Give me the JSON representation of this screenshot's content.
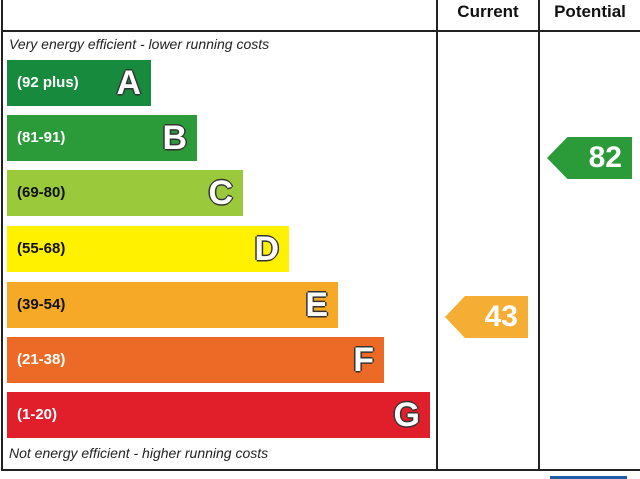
{
  "chart_data": {
    "type": "epc-rating",
    "headers": {
      "current": "Current",
      "potential": "Potential"
    },
    "top_note": "Very energy efficient - lower running costs",
    "bottom_note": "Not energy efficient - higher running costs",
    "bands": [
      {
        "letter": "A",
        "range": "(92 plus)",
        "color": "#178a3e"
      },
      {
        "letter": "B",
        "range": "(81-91)",
        "color": "#2b9b3a"
      },
      {
        "letter": "C",
        "range": "(69-80)",
        "color": "#9bc93c"
      },
      {
        "letter": "D",
        "range": "(55-68)",
        "color": "#fff100"
      },
      {
        "letter": "E",
        "range": "(39-54)",
        "color": "#f6a926"
      },
      {
        "letter": "F",
        "range": "(21-38)",
        "color": "#ec6a25"
      },
      {
        "letter": "G",
        "range": "(1-20)",
        "color": "#e01f2a"
      }
    ],
    "current": {
      "value": "43",
      "band": "E",
      "color": "#f6ad33"
    },
    "potential": {
      "value": "82",
      "band": "B",
      "color": "#2b9b3a"
    }
  }
}
